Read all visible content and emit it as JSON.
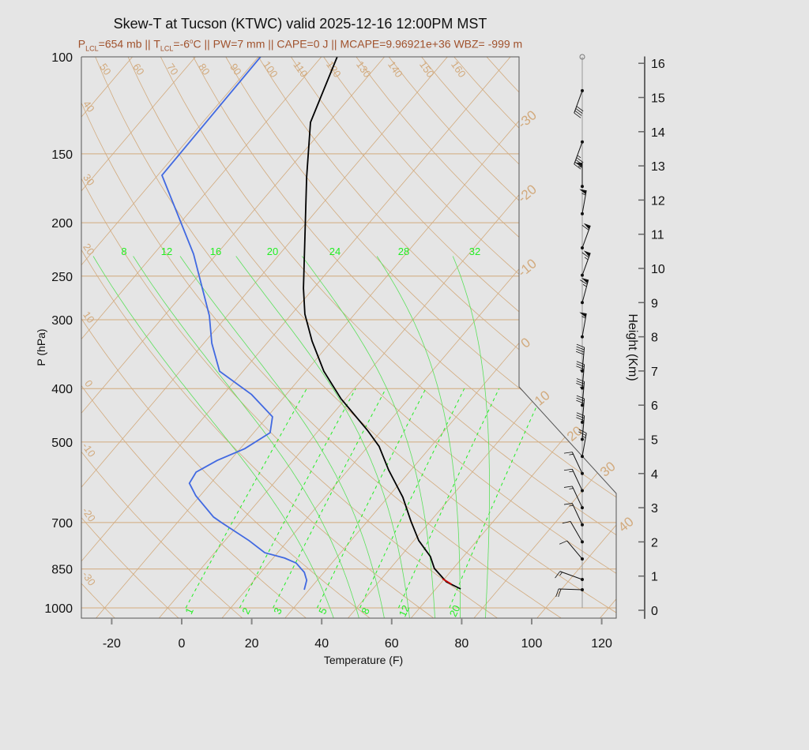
{
  "chart_data": {
    "type": "line",
    "title": "Skew-T at Tucson (KTWC) valid 2025-12-16 12:00PM MST",
    "subtitle": {
      "p_lcl_label": "P",
      "p_lcl_sub": "LCL",
      "p_lcl_value": "=654 mb || ",
      "t_lcl_label": "T",
      "t_lcl_sub": "LCL",
      "t_lcl_value": "=-6",
      "t_lcl_deg": "o",
      "t_lcl_rest": "C || PW=7 mm || CAPE=0 J || MCAPE=9.96921e+36 WBZ= -999 m"
    },
    "xlabel": "Temperature (F)",
    "ylabel": "P (hPa)",
    "y2label": "Height (Km)",
    "xticks": [
      -20,
      0,
      20,
      40,
      60,
      80,
      100,
      120
    ],
    "yticks": [
      100,
      150,
      200,
      250,
      300,
      400,
      500,
      700,
      850,
      1000
    ],
    "y2ticks": [
      0,
      1,
      2,
      3,
      4,
      5,
      6,
      7,
      8,
      9,
      10,
      11,
      12,
      13,
      14,
      15,
      16
    ],
    "ylim": [
      1050,
      100
    ],
    "yscale": "log",
    "skewed": true,
    "temperature": {
      "color": "#000000",
      "points": [
        [
          100,
          -89.5
        ],
        [
          131.5,
          -81.2
        ],
        [
          165.6,
          -68.9
        ],
        [
          263,
          -42.9
        ],
        [
          293,
          -36.2
        ],
        [
          328,
          -27.6
        ],
        [
          372,
          -16.9
        ],
        [
          417,
          -5.4
        ],
        [
          476,
          9.9
        ],
        [
          509,
          17.1
        ],
        [
          562,
          25.6
        ],
        [
          630,
          36.3
        ],
        [
          696,
          44.4
        ],
        [
          755,
          51.4
        ],
        [
          807,
          58.6
        ],
        [
          848,
          62.6
        ],
        [
          897,
          69.3
        ],
        [
          924,
          75.1
        ]
      ]
    },
    "dewpoint": {
      "color": "#4169e1",
      "points": [
        [
          100,
          -111.4
        ],
        [
          164,
          -110.8
        ],
        [
          228,
          -82.6
        ],
        [
          295,
          -63.1
        ],
        [
          331,
          -55.7
        ],
        [
          372,
          -46.7
        ],
        [
          410,
          -31.9
        ],
        [
          450,
          -20.5
        ],
        [
          481,
          -17.3
        ],
        [
          514,
          -20.7
        ],
        [
          540,
          -25.7
        ],
        [
          567,
          -28.9
        ],
        [
          594,
          -28.1
        ],
        [
          626,
          -23.2
        ],
        [
          684,
          -13.0
        ],
        [
          700,
          -9.4
        ],
        [
          755,
          2.9
        ],
        [
          794,
          10.3
        ],
        [
          812,
          17.3
        ],
        [
          829,
          21.8
        ],
        [
          862,
          26.4
        ],
        [
          891,
          29.0
        ],
        [
          927,
          30.6
        ]
      ]
    },
    "parcel_segment": {
      "color": "#cc0000",
      "points": [
        [
          885,
          67.4
        ],
        [
          906,
          71.4
        ]
      ]
    },
    "dry_adiabat_labels_top": [
      "50",
      "60",
      "70",
      "80",
      "90",
      "100",
      "110",
      "120",
      "130",
      "140",
      "150",
      "160"
    ],
    "dry_adiabat_labels_left": [
      "40",
      "30",
      "20",
      "10",
      "0",
      "-10",
      "-20",
      "-30"
    ],
    "isotherm_labels": [
      "-30",
      "-20",
      "-10",
      "0",
      "10",
      "20",
      "30",
      "40"
    ],
    "moist_adiabat_labels": [
      "8",
      "12",
      "16",
      "20",
      "24",
      "28",
      "32"
    ],
    "mixing_ratio_labels": [
      "1",
      "2",
      "3",
      "5",
      "8",
      "12",
      "20"
    ],
    "isobars": [
      100,
      150,
      200,
      250,
      300,
      400,
      500,
      700,
      850,
      1000
    ],
    "colors": {
      "grid": "#d2aa7d",
      "moist": "#22ee22",
      "frame": "#555555"
    },
    "wind_barbs": [
      {
        "km": 15.2,
        "speed_kt": 40,
        "dir": 200
      },
      {
        "km": 13.7,
        "speed_kt": 45,
        "dir": 200
      },
      {
        "km": 12.4,
        "speed_kt": 55,
        "dir": 0
      },
      {
        "km": 11.6,
        "speed_kt": 55,
        "dir": 10
      },
      {
        "km": 10.6,
        "speed_kt": 60,
        "dir": 20
      },
      {
        "km": 9.8,
        "speed_kt": 65,
        "dir": 20
      },
      {
        "km": 9.0,
        "speed_kt": 65,
        "dir": 15
      },
      {
        "km": 8.0,
        "speed_kt": 55,
        "dir": 10
      },
      {
        "km": 7.0,
        "speed_kt": 40,
        "dir": 5
      },
      {
        "km": 6.5,
        "speed_kt": 35,
        "dir": 5
      },
      {
        "km": 6.0,
        "speed_kt": 35,
        "dir": 5
      },
      {
        "km": 5.5,
        "speed_kt": 30,
        "dir": 5
      },
      {
        "km": 5.0,
        "speed_kt": 30,
        "dir": 5
      },
      {
        "km": 4.5,
        "speed_kt": 25,
        "dir": 10
      },
      {
        "km": 4.0,
        "speed_kt": 15,
        "dir": 335
      },
      {
        "km": 3.5,
        "speed_kt": 15,
        "dir": 335
      },
      {
        "km": 3.0,
        "speed_kt": 15,
        "dir": 335
      },
      {
        "km": 2.5,
        "speed_kt": 15,
        "dir": 335
      },
      {
        "km": 2.0,
        "speed_kt": 10,
        "dir": 330
      },
      {
        "km": 1.5,
        "speed_kt": 10,
        "dir": 320
      },
      {
        "km": 0.9,
        "speed_kt": 15,
        "dir": 290
      },
      {
        "km": 0.6,
        "speed_kt": 20,
        "dir": 272
      }
    ]
  }
}
